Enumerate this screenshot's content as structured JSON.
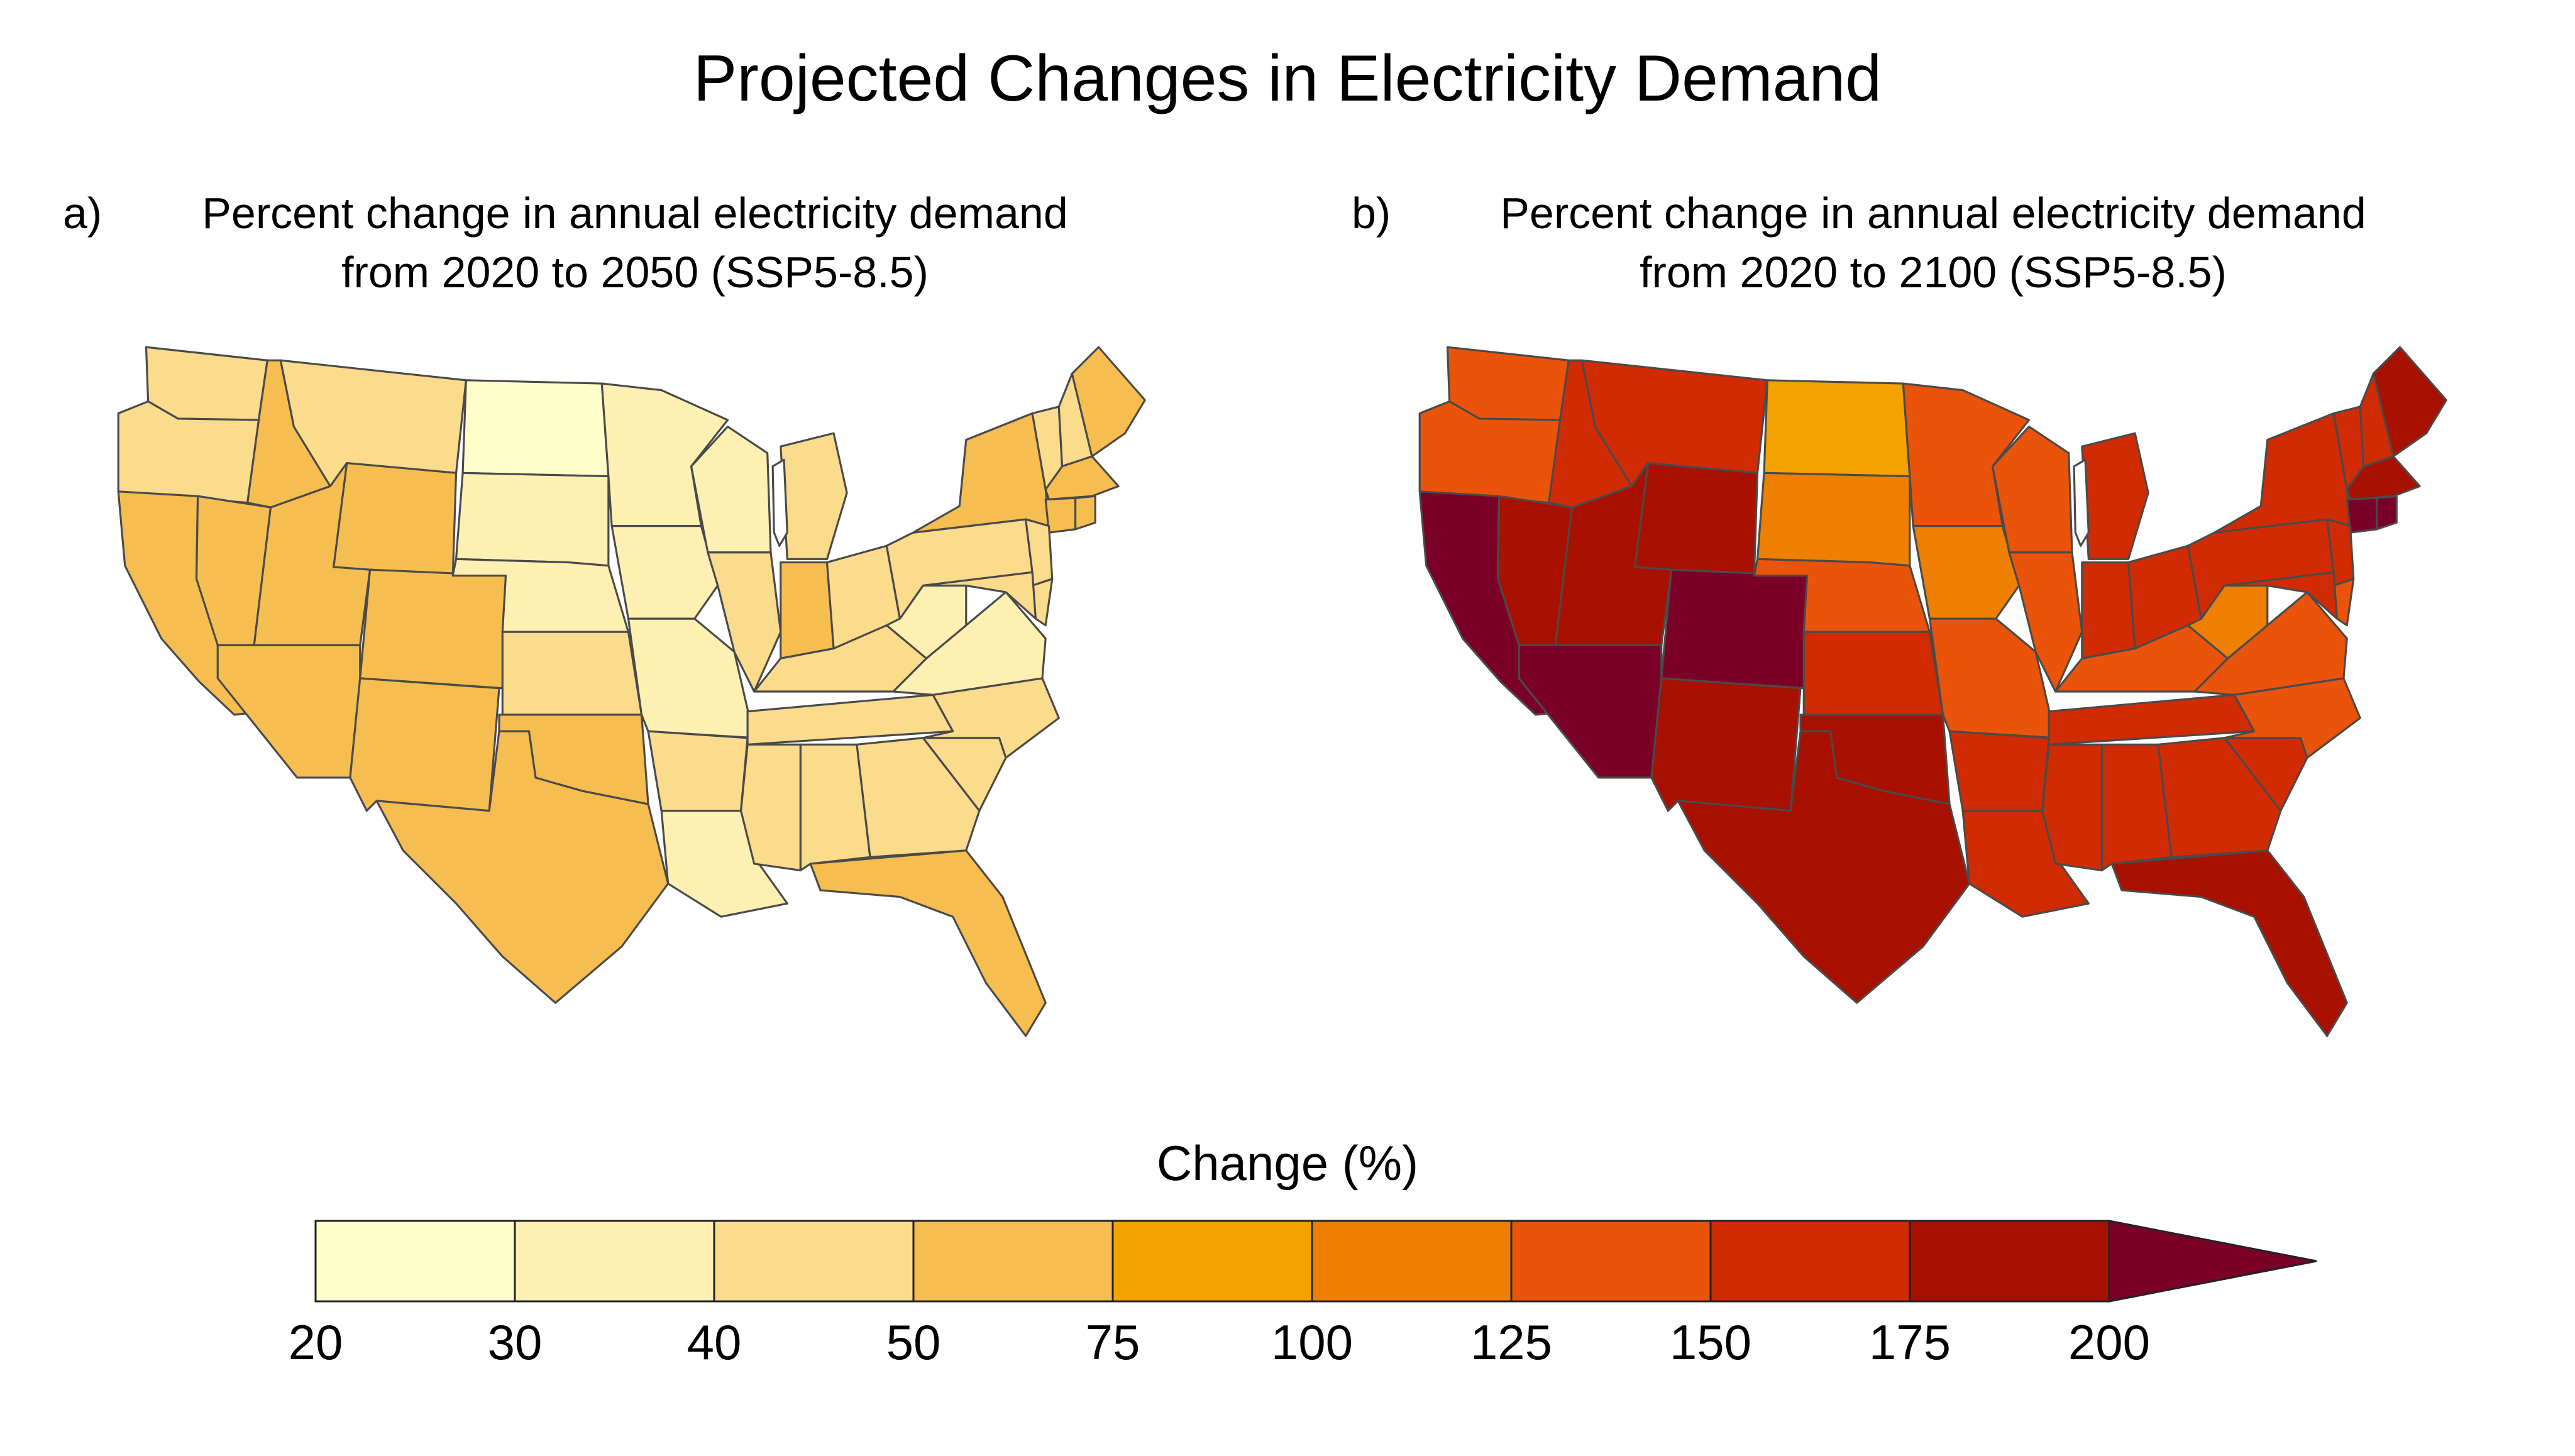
{
  "figure": {
    "title": "Projected Changes in Electricity Demand"
  },
  "panels": [
    {
      "letter": "a)",
      "title_line1": "Percent change in annual electricity demand",
      "title_line2": "from 2020 to 2050 (SSP5-8.5)",
      "state_bins": {
        "WA": "40-50",
        "OR": "40-50",
        "CA": "50-75",
        "NV": "50-75",
        "ID": "50-75",
        "MT": "40-50",
        "WY": "50-75",
        "UT": "50-75",
        "CO": "50-75",
        "AZ": "50-75",
        "NM": "50-75",
        "ND": "20-30",
        "SD": "30-40",
        "NE": "30-40",
        "KS": "40-50",
        "OK": "50-75",
        "TX": "50-75",
        "MN": "30-40",
        "IA": "30-40",
        "MO": "30-40",
        "AR": "40-50",
        "LA": "30-40",
        "WI": "30-40",
        "IL": "40-50",
        "MI": "40-50",
        "IN": "50-75",
        "OH": "40-50",
        "KY": "40-50",
        "TN": "40-50",
        "MS": "40-50",
        "AL": "40-50",
        "GA": "40-50",
        "FL": "50-75",
        "SC": "40-50",
        "NC": "40-50",
        "VA": "30-40",
        "WV": "30-40",
        "PA": "40-50",
        "NY": "50-75",
        "VT": "40-50",
        "NH": "40-50",
        "ME": "50-75",
        "MA": "50-75",
        "CT": "50-75",
        "RI": "50-75",
        "NJ": "40-50",
        "DE": "40-50",
        "MD": "40-50"
      }
    },
    {
      "letter": "b)",
      "title_line1": "Percent change in annual electricity demand",
      "title_line2": "from 2020 to 2100 (SSP5-8.5)",
      "state_bins": {
        "WA": "125-150",
        "OR": "125-150",
        "CA": ">200",
        "NV": "175-200",
        "ID": "150-175",
        "MT": "150-175",
        "WY": "175-200",
        "UT": "175-200",
        "CO": ">200",
        "AZ": ">200",
        "NM": "175-200",
        "ND": "75-100",
        "SD": "100-125",
        "NE": "125-150",
        "KS": "150-175",
        "OK": "175-200",
        "TX": "175-200",
        "MN": "125-150",
        "IA": "100-125",
        "MO": "125-150",
        "AR": "150-175",
        "LA": "150-175",
        "WI": "125-150",
        "IL": "125-150",
        "MI": "150-175",
        "IN": "150-175",
        "OH": "150-175",
        "KY": "125-150",
        "TN": "150-175",
        "MS": "150-175",
        "AL": "150-175",
        "GA": "150-175",
        "FL": "175-200",
        "SC": "150-175",
        "NC": "125-150",
        "VA": "125-150",
        "WV": "100-125",
        "PA": "150-175",
        "NY": "150-175",
        "VT": "150-175",
        "NH": "150-175",
        "ME": "175-200",
        "MA": "175-200",
        "CT": ">200",
        "RI": ">200",
        "NJ": "150-175",
        "DE": "125-150",
        "MD": "150-175"
      }
    }
  ],
  "legend": {
    "title": "Change (%)",
    "bins": [
      "20-30",
      "30-40",
      "40-50",
      "50-75",
      "75-100",
      "100-125",
      "125-150",
      "150-175",
      "175-200",
      ">200"
    ],
    "colors": [
      "#FFFFCC",
      "#FEF0B2",
      "#FBDB8C",
      "#F6BE50",
      "#F3A200",
      "#EE7F00",
      "#E9530A",
      "#D12B03",
      "#A81000",
      "#7B0028"
    ],
    "ticks": [
      "20",
      "30",
      "40",
      "50",
      "75",
      "100",
      "125",
      "150",
      "175",
      "200"
    ],
    "extend": "max"
  }
}
